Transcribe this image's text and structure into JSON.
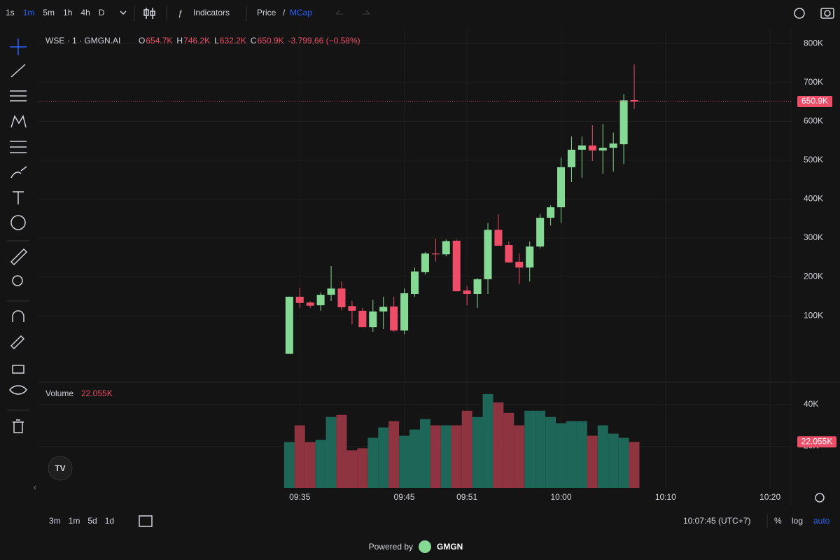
{
  "toolbar": {
    "intervals": [
      "1s",
      "1m",
      "5m",
      "1h",
      "4h",
      "D"
    ],
    "indicators": "Indicators",
    "price": "Price",
    "separator": "/",
    "mcap": "MCap"
  },
  "legend": {
    "symbol": "WSE · 1 · GMGN.AI",
    "o_label": "O",
    "o": "654.7K",
    "h_label": "H",
    "h": "746.2K",
    "l_label": "L",
    "l": "632.2K",
    "c_label": "C",
    "c": "650.9K",
    "change": "-3.799,66 (−0.58%)",
    "volume_label": "Volume",
    "volume": "22.055K"
  },
  "price_tag": "650.9K",
  "volume_tag": "22.055K",
  "bottom": {
    "ranges": [
      "3m",
      "1m",
      "5d",
      "1d"
    ],
    "clock": "10:07:45 (UTC+7)",
    "percent": "%",
    "log": "log",
    "auto": "auto"
  },
  "footer": {
    "powered": "Powered by",
    "brand": "GMGN"
  },
  "chart_data": {
    "type": "candlestick",
    "x": [
      "09:34",
      "09:35",
      "09:36",
      "09:37",
      "09:38",
      "09:39",
      "09:40",
      "09:41",
      "09:42",
      "09:43",
      "09:44",
      "09:45",
      "09:46",
      "09:47",
      "09:48",
      "09:49",
      "09:50",
      "09:51",
      "09:52",
      "09:53",
      "09:54",
      "09:55",
      "09:56",
      "09:57",
      "09:58",
      "09:59",
      "10:00",
      "10:01",
      "10:02",
      "10:03",
      "10:04",
      "10:05",
      "10:06",
      "10:07"
    ],
    "open": [
      2,
      149,
      134,
      127,
      154,
      170,
      125,
      113,
      71,
      111,
      124,
      62,
      156,
      212,
      260,
      258,
      293,
      165,
      156,
      194,
      321,
      282,
      239,
      224,
      278,
      352,
      379,
      482,
      527,
      538,
      525,
      532,
      541,
      654.7
    ],
    "high": [
      149,
      172,
      137,
      160,
      228,
      188,
      138,
      120,
      141,
      149,
      149,
      170,
      224,
      264,
      298,
      296,
      296,
      177,
      197,
      339,
      361,
      291,
      260,
      291,
      361,
      384,
      507,
      561,
      561,
      590,
      593,
      571,
      670,
      746.2
    ],
    "low": [
      2,
      120,
      120,
      113,
      138,
      114,
      78,
      71,
      59,
      66,
      59,
      53,
      149,
      206,
      240,
      253,
      163,
      127,
      120,
      156,
      280,
      237,
      181,
      188,
      273,
      332,
      339,
      444,
      455,
      498,
      465,
      471,
      490,
      632.2
    ],
    "close": [
      149,
      133,
      126,
      154,
      170,
      122,
      113,
      71,
      111,
      123,
      62,
      158,
      214,
      260,
      258,
      292,
      163,
      156,
      194,
      321,
      280,
      237,
      224,
      278,
      352,
      379,
      482,
      527,
      538,
      525,
      532,
      543,
      654,
      650.9
    ],
    "volume": [
      22,
      30,
      22,
      23,
      34,
      35,
      18,
      19,
      24,
      29,
      32,
      25,
      28,
      33,
      30,
      30,
      30,
      37,
      34,
      45,
      41,
      36,
      30,
      37,
      37,
      34,
      31,
      32,
      32,
      25,
      30,
      26,
      24,
      22.055
    ],
    "up_color": "#86d895",
    "down_color": "#ee4d68",
    "volume_up_color": "#1d6658",
    "volume_down_color": "#8e3440",
    "xlim": [
      "09:10",
      "10:22"
    ],
    "xticks": [
      "09:35",
      "09:45",
      "09:51",
      "10:00",
      "10:10",
      "10:20"
    ],
    "ylim": [
      -69,
      831
    ],
    "yticks": [
      {
        "value": 100,
        "label": "100K"
      },
      {
        "value": 200,
        "label": "200K"
      },
      {
        "value": 300,
        "label": "300K"
      },
      {
        "value": 400,
        "label": "400K"
      },
      {
        "value": 500,
        "label": "500K"
      },
      {
        "value": 600,
        "label": "600K"
      },
      {
        "value": 700,
        "label": "700K"
      },
      {
        "value": 800,
        "label": "800K"
      }
    ],
    "volume_ylim": [
      0,
      50
    ],
    "volume_yticks": [
      {
        "value": 20,
        "label": "20K"
      },
      {
        "value": 40,
        "label": "40K"
      }
    ],
    "grid": true
  }
}
